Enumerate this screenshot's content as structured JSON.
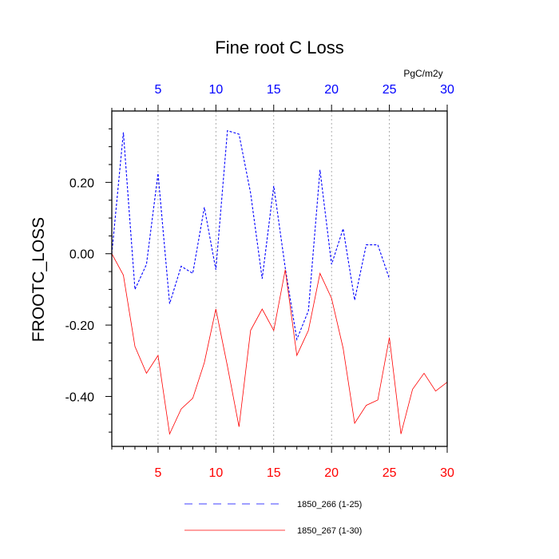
{
  "chart_data": {
    "type": "line",
    "title": "Fine root C Loss",
    "units": "PgC/m2y",
    "ylabel": "FROOTC_LOSS",
    "xlim": [
      1,
      30
    ],
    "ylim": [
      -0.54,
      0.4
    ],
    "yticks": [
      0.2,
      0.0,
      -0.2,
      -0.4
    ],
    "ytick_labels": [
      "0.20",
      "0.00",
      "-0.20",
      "-0.40"
    ],
    "top_axis": {
      "ticks": [
        5,
        10,
        15,
        20,
        25,
        30
      ],
      "labels": [
        "5",
        "10",
        "15",
        "20",
        "25",
        "30"
      ],
      "color": "#0000ff"
    },
    "bottom_axis": {
      "ticks": [
        5,
        10,
        15,
        20,
        25,
        30
      ],
      "labels": [
        "5",
        "10",
        "15",
        "20",
        "25",
        "30"
      ],
      "color": "#ff0000"
    },
    "grid": "vertical dotted at top-axis ticks",
    "series": [
      {
        "name": "1850_266 (1-25)",
        "color": "#0000ff",
        "dash": "dashed",
        "x": [
          1,
          2,
          3,
          4,
          5,
          6,
          7,
          8,
          9,
          10,
          11,
          12,
          13,
          14,
          15,
          16,
          17,
          18,
          19,
          20,
          21,
          22,
          23,
          24,
          25
        ],
        "values": [
          0.0,
          0.34,
          -0.1,
          -0.03,
          0.225,
          -0.14,
          -0.035,
          -0.055,
          0.13,
          -0.045,
          0.345,
          0.335,
          0.17,
          -0.07,
          0.19,
          -0.04,
          -0.24,
          -0.16,
          0.235,
          -0.03,
          0.07,
          -0.13,
          0.025,
          0.025,
          -0.07
        ]
      },
      {
        "name": "1850_267 (1-30)",
        "color": "#ff0000",
        "dash": "solid",
        "x": [
          1,
          2,
          3,
          4,
          5,
          6,
          7,
          8,
          9,
          10,
          11,
          12,
          13,
          14,
          15,
          16,
          17,
          18,
          19,
          20,
          21,
          22,
          23,
          24,
          25,
          26,
          27,
          28,
          29,
          30
        ],
        "values": [
          0.0,
          -0.06,
          -0.26,
          -0.335,
          -0.285,
          -0.505,
          -0.435,
          -0.405,
          -0.305,
          -0.155,
          -0.315,
          -0.485,
          -0.215,
          -0.155,
          -0.215,
          -0.045,
          -0.285,
          -0.215,
          -0.055,
          -0.125,
          -0.265,
          -0.475,
          -0.425,
          -0.41,
          -0.235,
          -0.505,
          -0.38,
          -0.335,
          -0.385,
          -0.36
        ]
      }
    ],
    "legend_placement": "bottom"
  }
}
